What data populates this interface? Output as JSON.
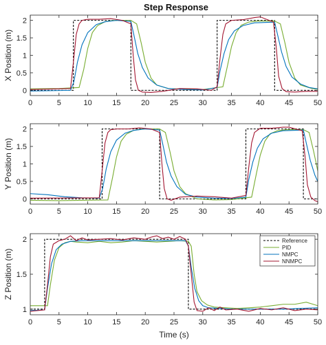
{
  "chart_data": [
    {
      "type": "line",
      "title": "Step Response",
      "xlabel": "",
      "ylabel": "X Position (m)",
      "xlim": [
        0,
        50
      ],
      "ylim": [
        -0.15,
        2.15
      ],
      "xticks": [
        0,
        5,
        10,
        15,
        20,
        25,
        30,
        35,
        40,
        45,
        50
      ],
      "yticks": [
        0,
        0.5,
        1,
        1.5,
        2
      ],
      "grid": false,
      "series": [
        {
          "name": "Reference",
          "color": "#000000",
          "dash": "3,2",
          "x": [
            0,
            7.5,
            7.5,
            17.5,
            17.5,
            32.5,
            32.5,
            42.5,
            42.5,
            50
          ],
          "y": [
            0,
            0,
            2,
            2,
            0,
            0,
            2,
            2,
            0,
            0
          ]
        },
        {
          "name": "PID",
          "color": "#77ac30",
          "x": [
            0,
            5,
            8.5,
            9.3,
            10,
            10.8,
            11.7,
            13,
            14.5,
            17.5,
            18.5,
            19.3,
            20,
            21,
            22,
            24,
            27,
            30,
            33.5,
            34.3,
            35,
            35.8,
            36.7,
            38,
            39.5,
            42.5,
            43.5,
            44.3,
            45,
            46,
            47,
            49,
            50
          ],
          "y": [
            0.04,
            0.05,
            0.08,
            0.6,
            1.2,
            1.65,
            1.85,
            1.96,
            2.0,
            2.0,
            1.9,
            1.35,
            0.8,
            0.35,
            0.15,
            0.05,
            0.03,
            0.02,
            0.1,
            0.7,
            1.25,
            1.65,
            1.86,
            1.95,
            1.98,
            1.98,
            1.9,
            1.35,
            0.8,
            0.35,
            0.15,
            0.05,
            0.03
          ]
        },
        {
          "name": "NMPC",
          "color": "#0072bd",
          "x": [
            0,
            7,
            7.6,
            8.2,
            9,
            10,
            11.5,
            13,
            15,
            17.5,
            18,
            18.7,
            19.5,
            20.5,
            22,
            24,
            27,
            30,
            32.5,
            33,
            33.7,
            34.5,
            35.5,
            37,
            39,
            42.5,
            43,
            43.7,
            44.5,
            45.5,
            47,
            48.5,
            50
          ],
          "y": [
            -0.02,
            0.0,
            0.25,
            0.8,
            1.3,
            1.65,
            1.88,
            1.96,
            2.0,
            1.97,
            1.6,
            1.05,
            0.65,
            0.35,
            0.15,
            0.05,
            0.02,
            0.01,
            0.08,
            0.55,
            1.05,
            1.45,
            1.7,
            1.85,
            1.93,
            1.95,
            1.6,
            1.1,
            0.68,
            0.38,
            0.18,
            0.08,
            0.04
          ]
        },
        {
          "name": "NNMPC",
          "color": "#a2142f",
          "x": [
            0,
            7,
            7.5,
            8,
            8.5,
            9,
            10,
            12,
            14,
            16,
            17.5,
            17.9,
            18.3,
            18.8,
            19.5,
            21,
            23,
            26,
            29,
            31.5,
            32.5,
            33,
            33.5,
            34,
            35,
            37,
            39,
            40,
            42.3,
            42.8,
            43.2,
            43.8,
            44.5,
            46,
            48,
            50
          ],
          "y": [
            0.02,
            0.05,
            0.8,
            1.6,
            1.9,
            2.0,
            2.03,
            2.03,
            2.05,
            2.0,
            1.9,
            1.0,
            0.3,
            0.0,
            -0.05,
            -0.06,
            -0.03,
            0.05,
            0.04,
            0.0,
            0.1,
            0.9,
            1.6,
            1.9,
            2.0,
            2.02,
            2.08,
            2.1,
            1.95,
            1.2,
            0.4,
            0.05,
            -0.04,
            -0.05,
            -0.03,
            -0.03
          ]
        }
      ]
    },
    {
      "type": "line",
      "title": "",
      "xlabel": "",
      "ylabel": "Y Position (m)",
      "xlim": [
        0,
        50
      ],
      "ylim": [
        -0.15,
        2.15
      ],
      "xticks": [
        0,
        5,
        10,
        15,
        20,
        25,
        30,
        35,
        40,
        45,
        50
      ],
      "yticks": [
        0,
        0.5,
        1,
        1.5,
        2
      ],
      "grid": false,
      "series": [
        {
          "name": "Reference",
          "color": "#000000",
          "dash": "3,2",
          "x": [
            0,
            12.5,
            12.5,
            22.5,
            22.5,
            37.5,
            37.5,
            47.5,
            47.5,
            50
          ],
          "y": [
            0,
            0,
            2,
            2,
            0,
            0,
            2,
            2,
            0,
            0
          ]
        },
        {
          "name": "PID",
          "color": "#77ac30",
          "x": [
            0,
            5,
            13.5,
            14.3,
            15,
            15.8,
            16.7,
            18,
            19.5,
            22.5,
            23.5,
            24.3,
            25,
            26,
            27,
            29,
            32,
            35,
            38.5,
            39.3,
            40,
            40.8,
            41.7,
            43,
            44.5,
            47.5,
            48.5,
            49.3,
            50
          ],
          "y": [
            -0.04,
            -0.05,
            -0.03,
            0.6,
            1.2,
            1.65,
            1.85,
            1.96,
            2.0,
            2.0,
            1.9,
            1.35,
            0.8,
            0.35,
            0.15,
            0.0,
            -0.03,
            -0.02,
            0.05,
            0.7,
            1.25,
            1.65,
            1.86,
            1.95,
            1.98,
            1.98,
            1.9,
            1.35,
            0.8
          ]
        },
        {
          "name": "NMPC",
          "color": "#0072bd",
          "x": [
            0,
            3,
            6,
            9,
            12,
            12.6,
            13.2,
            14,
            15,
            16.5,
            18,
            20,
            22.5,
            23,
            23.7,
            24.5,
            25.5,
            27,
            29,
            32,
            35,
            37.5,
            38,
            38.7,
            39.5,
            40.5,
            42,
            44,
            47.5,
            48,
            48.7,
            49.5,
            50
          ],
          "y": [
            0.15,
            0.12,
            0.06,
            0.03,
            0.02,
            0.3,
            0.85,
            1.35,
            1.68,
            1.88,
            1.96,
            2.0,
            1.97,
            1.6,
            1.05,
            0.65,
            0.35,
            0.13,
            0.05,
            0.02,
            0.01,
            0.05,
            0.55,
            1.05,
            1.45,
            1.72,
            1.88,
            1.95,
            1.97,
            1.6,
            1.1,
            0.68,
            0.5
          ]
        },
        {
          "name": "NNMPC",
          "color": "#a2142f",
          "x": [
            0,
            12,
            12.5,
            13,
            13.5,
            14,
            15,
            17,
            19,
            21,
            22.5,
            22.9,
            23.3,
            23.8,
            24.5,
            26,
            29,
            32,
            35,
            37.5,
            38,
            38.5,
            39,
            40,
            42,
            44,
            45,
            47.3,
            47.8,
            48.2,
            48.8,
            49.5,
            50
          ],
          "y": [
            0.02,
            0.03,
            0.8,
            1.6,
            1.9,
            1.98,
            2.0,
            2.0,
            2.03,
            2.0,
            1.9,
            1.0,
            0.3,
            0.0,
            -0.04,
            0.05,
            0.08,
            0.06,
            0.02,
            0.1,
            0.9,
            1.6,
            1.9,
            2.02,
            2.02,
            2.05,
            2.05,
            1.95,
            1.2,
            0.4,
            0.05,
            -0.05,
            -0.08
          ]
        }
      ]
    },
    {
      "type": "line",
      "title": "",
      "xlabel": "Time (s)",
      "ylabel": "Z Position (m)",
      "xlim": [
        0,
        50
      ],
      "ylim": [
        0.92,
        2.08
      ],
      "xticks": [
        0,
        5,
        10,
        15,
        20,
        25,
        30,
        35,
        40,
        45,
        50
      ],
      "yticks": [
        1,
        1.5,
        2
      ],
      "grid": false,
      "legend_position": "top-right",
      "series": [
        {
          "name": "Reference",
          "color": "#000000",
          "dash": "3,2",
          "x": [
            0,
            2.5,
            2.5,
            27.5,
            27.5,
            50
          ],
          "y": [
            1,
            1,
            2,
            2,
            1,
            1
          ]
        },
        {
          "name": "PID",
          "color": "#77ac30",
          "x": [
            0,
            3,
            3.5,
            4.2,
            5,
            6,
            7,
            8,
            10,
            12,
            14,
            16,
            18,
            20,
            22,
            24,
            26,
            27.5,
            28,
            28.5,
            29,
            29.8,
            30.8,
            32,
            34,
            36,
            38,
            40,
            42,
            44,
            46,
            48,
            50
          ],
          "y": [
            1.05,
            1.05,
            1.35,
            1.7,
            1.88,
            1.95,
            1.97,
            1.96,
            1.95,
            1.97,
            1.95,
            1.96,
            1.98,
            1.97,
            1.96,
            1.97,
            1.98,
            1.97,
            1.9,
            1.5,
            1.25,
            1.12,
            1.06,
            1.03,
            1.02,
            1.01,
            1.02,
            1.03,
            1.05,
            1.07,
            1.07,
            1.1,
            1.05
          ]
        },
        {
          "name": "NMPC",
          "color": "#0072bd",
          "x": [
            0,
            2.5,
            3,
            3.7,
            4.5,
            5.5,
            7,
            9,
            11,
            13,
            15,
            17,
            19,
            21,
            23,
            25,
            27,
            27.5,
            28,
            28.6,
            29.3,
            30,
            31,
            33,
            35,
            38,
            41,
            44,
            47,
            50
          ],
          "y": [
            0.98,
            0.99,
            1.3,
            1.65,
            1.85,
            1.93,
            1.97,
            1.98,
            1.98,
            1.98,
            1.98,
            1.98,
            1.98,
            1.98,
            1.98,
            1.98,
            1.98,
            1.9,
            1.6,
            1.3,
            1.12,
            1.05,
            1.02,
            1.01,
            1.0,
            1.0,
            1.0,
            1.0,
            1.01,
            1.02
          ]
        },
        {
          "name": "NNMPC",
          "color": "#a2142f",
          "x": [
            0,
            2.5,
            3,
            3.5,
            4,
            5,
            6,
            7,
            8,
            9,
            10,
            12,
            14,
            16,
            18,
            20,
            21,
            22,
            23,
            24,
            25,
            26,
            27,
            27.5,
            28,
            28.5,
            29,
            30,
            31,
            32,
            33,
            34,
            36,
            38,
            40,
            42,
            44,
            46,
            48,
            50
          ],
          "y": [
            0.97,
            0.99,
            1.35,
            1.75,
            1.93,
            1.98,
            2.0,
            2.05,
            1.98,
            2.02,
            1.99,
            2.0,
            2.01,
            1.99,
            2.02,
            2.0,
            2.03,
            2.05,
            2.01,
            2.03,
            2.0,
            2.04,
            2.0,
            1.9,
            1.5,
            1.1,
            0.98,
            0.97,
            1.02,
            0.98,
            1.03,
            0.99,
            1.0,
            0.97,
            1.01,
            0.99,
            1.02,
            0.98,
            1.0,
            0.99
          ]
        }
      ]
    }
  ]
}
